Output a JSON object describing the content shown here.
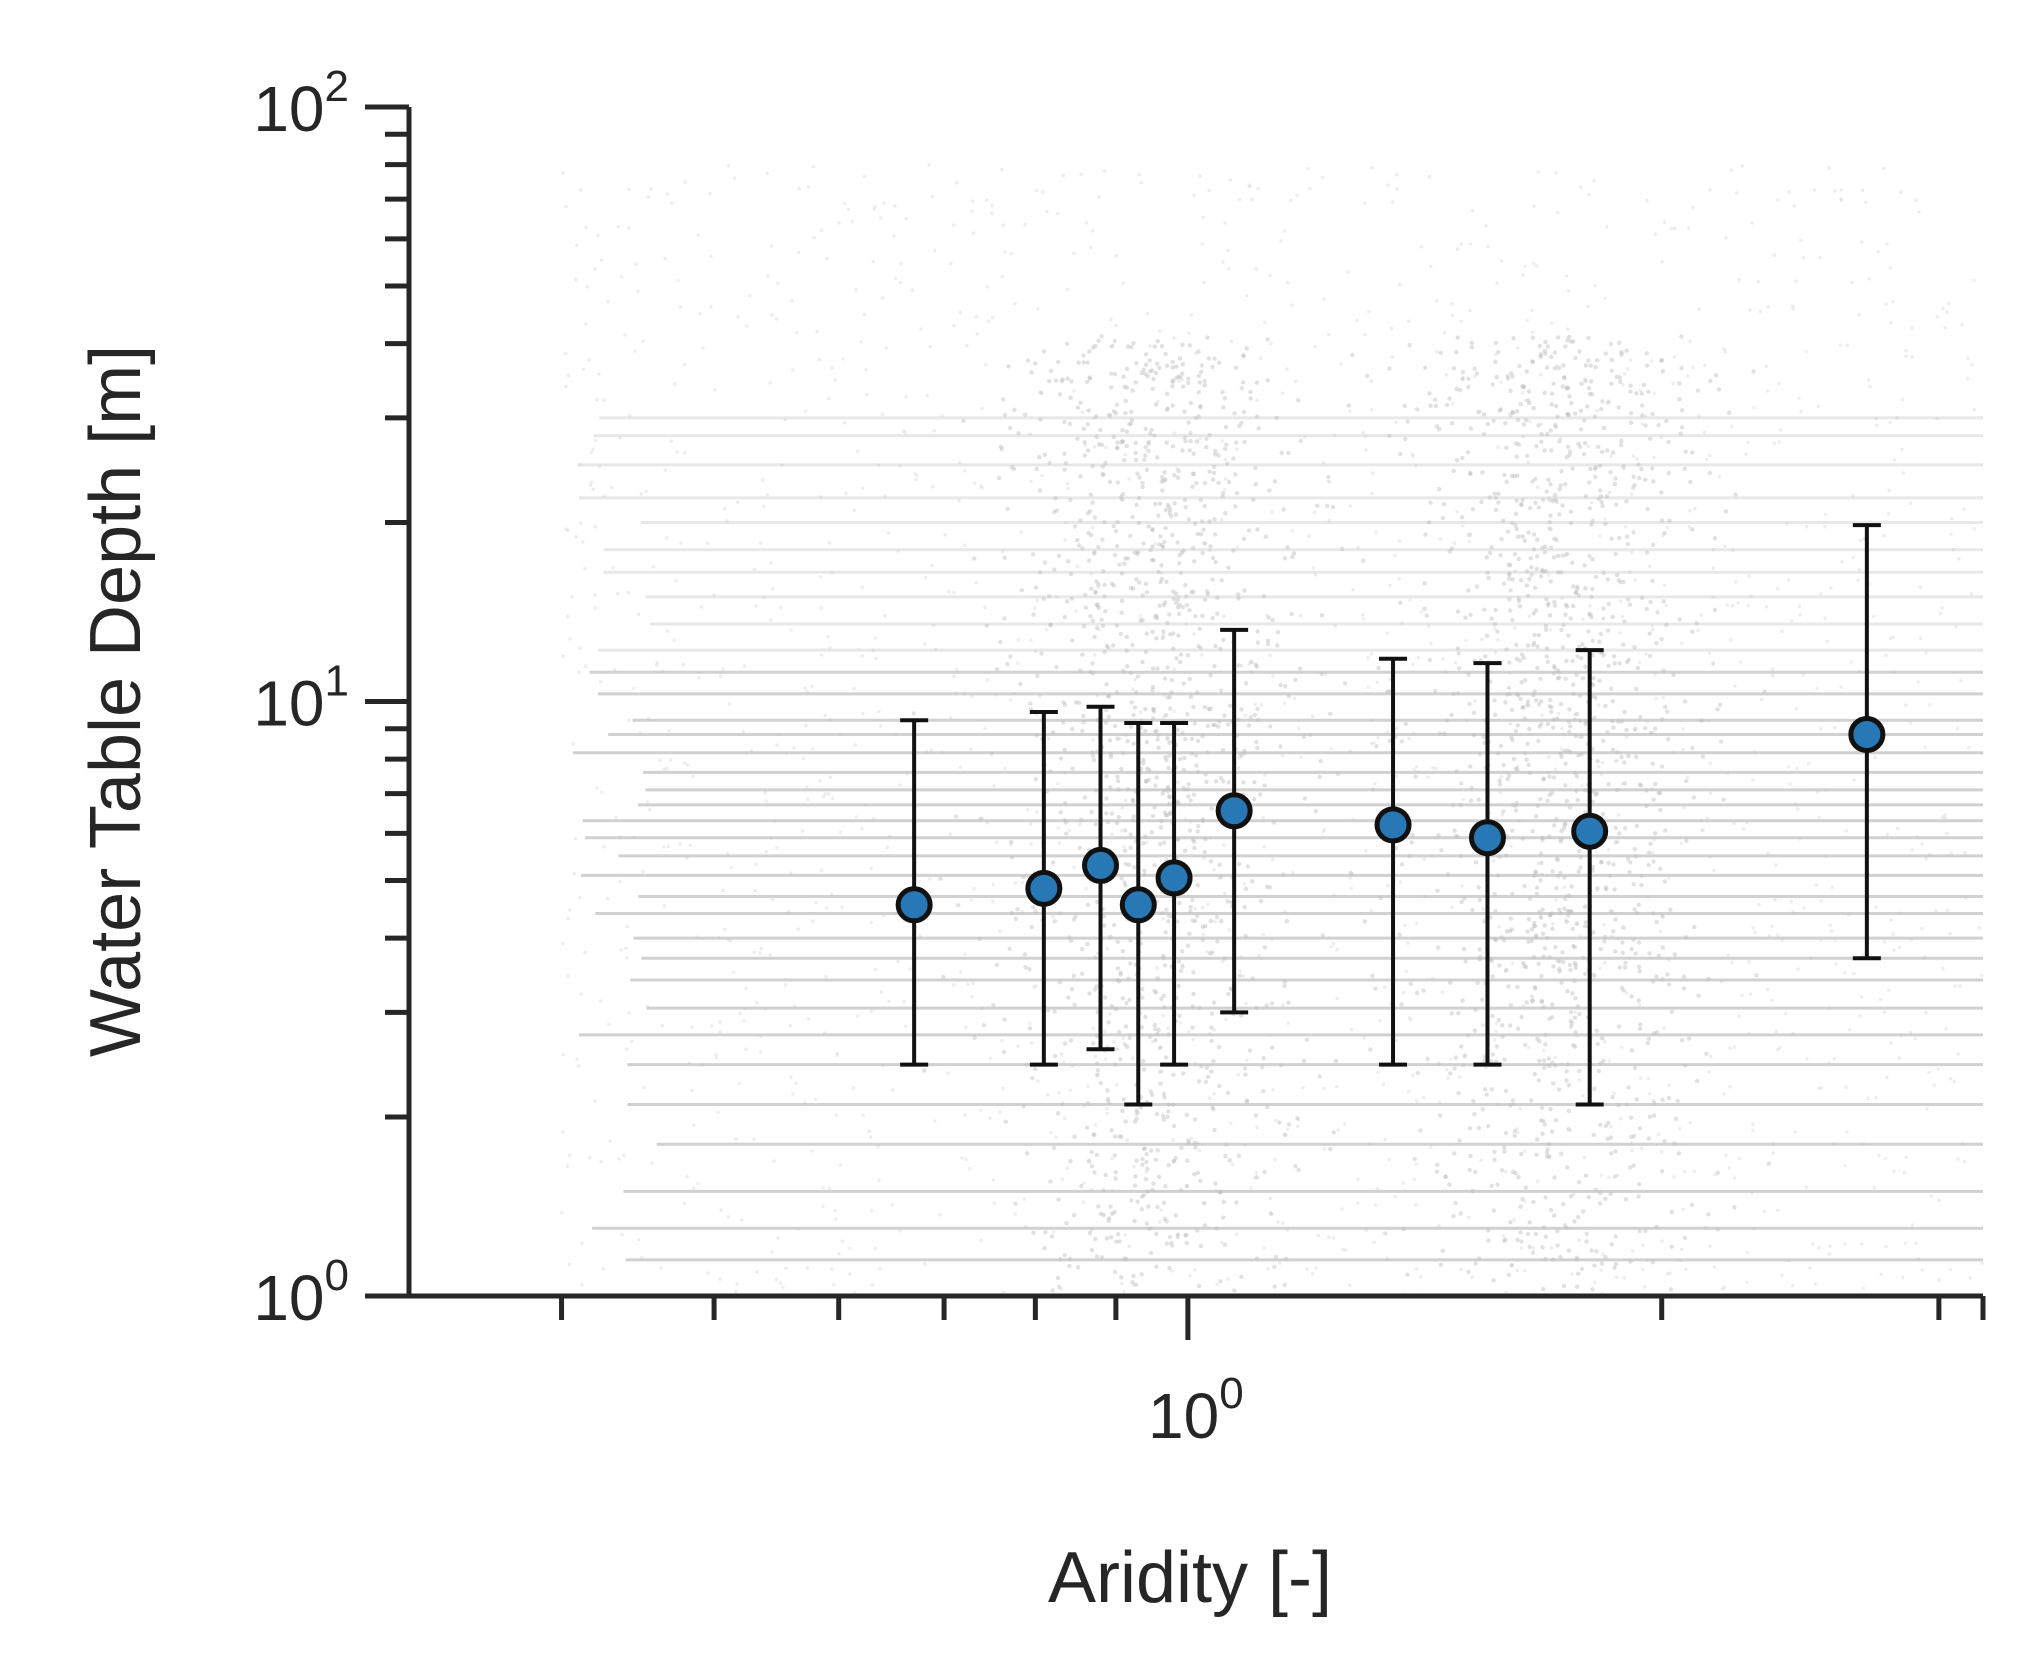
{
  "chart_data": {
    "type": "scatter",
    "xlabel": "Aridity [-]",
    "ylabel": "Water Table Depth [m]",
    "xscale": "log",
    "yscale": "log",
    "xlim": [
      0.32,
      3.2
    ],
    "ylim": [
      1,
      100
    ],
    "grid": false,
    "legend": "none",
    "x_tick_labels": [
      {
        "base": "10",
        "exp": "0",
        "value": 1
      }
    ],
    "y_tick_labels": [
      {
        "base": "10",
        "exp": "0",
        "value": 1
      },
      {
        "base": "10",
        "exp": "1",
        "value": 10
      },
      {
        "base": "10",
        "exp": "2",
        "value": 100
      }
    ],
    "colors": {
      "point_fill": "#2778b4",
      "point_edge": "#111111",
      "errorbar": "#111111",
      "background_scatter": "#bdbdbd",
      "axis": "#262626"
    },
    "background_scatter": {
      "description_color": "#bdbdbd",
      "x_range": [
        0.4,
        3.2
      ],
      "y_range": [
        1,
        80
      ],
      "dense_x_centers": [
        0.95,
        1.72
      ]
    },
    "series": [
      {
        "marker": "circle",
        "points": [
          {
            "x": 0.67,
            "y": 4.55,
            "y_low": 2.45,
            "y_high": 9.3
          },
          {
            "x": 0.81,
            "y": 4.85,
            "y_low": 2.45,
            "y_high": 9.6
          },
          {
            "x": 0.88,
            "y": 5.3,
            "y_low": 2.6,
            "y_high": 9.8
          },
          {
            "x": 0.93,
            "y": 4.55,
            "y_low": 2.1,
            "y_high": 9.2
          },
          {
            "x": 0.98,
            "y": 5.05,
            "y_low": 2.45,
            "y_high": 9.2
          },
          {
            "x": 1.07,
            "y": 6.55,
            "y_low": 3.0,
            "y_high": 13.2
          },
          {
            "x": 1.35,
            "y": 6.2,
            "y_low": 2.45,
            "y_high": 11.8
          },
          {
            "x": 1.55,
            "y": 5.9,
            "y_low": 2.45,
            "y_high": 11.6
          },
          {
            "x": 1.8,
            "y": 6.05,
            "y_low": 2.1,
            "y_high": 12.2
          },
          {
            "x": 2.7,
            "y": 8.8,
            "y_low": 3.7,
            "y_high": 19.8
          }
        ]
      }
    ]
  }
}
